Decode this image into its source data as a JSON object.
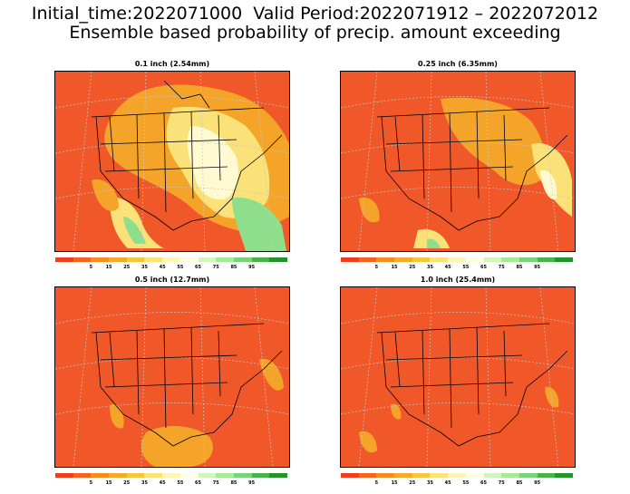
{
  "title": {
    "line1": "Initial_time:2022071000  Valid Period:2022071912 – 2022072012",
    "line2": "Ensemble based probability of precip. amount exceeding"
  },
  "panels": [
    {
      "title": "0.1 inch (2.54mm)"
    },
    {
      "title": "0.25 inch (6.35mm)"
    },
    {
      "title": "0.5 inch (12.7mm)"
    },
    {
      "title": "1.0 inch (25.4mm)"
    }
  ],
  "colorbar": {
    "colors": [
      "#f23c1c",
      "#f5641e",
      "#f58c1e",
      "#f5aa28",
      "#f5c83c",
      "#fae178",
      "#fff5b4",
      "#ffffe6",
      "#d2f5be",
      "#a5eb96",
      "#78d278",
      "#46b446",
      "#1e9628"
    ],
    "labels": [
      "5",
      "15",
      "25",
      "35",
      "45",
      "55",
      "65",
      "75",
      "85",
      "95"
    ]
  },
  "colors": {
    "low_prob_red": "#f0582a",
    "orange": "#f5a42a",
    "yellow": "#fae178",
    "cream": "#fffad2",
    "green": "#8ede8c",
    "map_lines": "#000000",
    "grid_lines": "#c8c8c8"
  }
}
